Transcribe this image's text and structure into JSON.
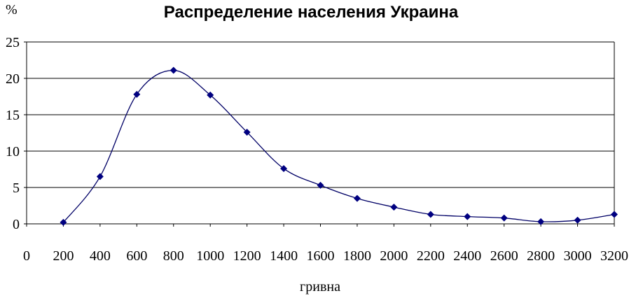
{
  "chart_data": {
    "type": "line",
    "title": "Распределение населения Украина",
    "xlabel": "гривна",
    "ylabel": "%",
    "x": [
      200,
      400,
      600,
      800,
      1000,
      1200,
      1400,
      1600,
      1800,
      2000,
      2200,
      2400,
      2600,
      2800,
      3000,
      3200
    ],
    "series": [
      {
        "values": [
          0.2,
          6.5,
          17.8,
          21.1,
          17.7,
          12.6,
          7.6,
          5.3,
          3.5,
          2.3,
          1.3,
          1.0,
          0.8,
          0.3,
          0.5,
          1.3
        ]
      }
    ],
    "xticks": [
      "0",
      "200",
      "400",
      "600",
      "800",
      "1000",
      "1200",
      "1400",
      "1600",
      "1800",
      "2000",
      "2200",
      "2400",
      "2600",
      "2800",
      "3000",
      "3200"
    ],
    "yticks": [
      "0",
      "5",
      "10",
      "15",
      "20",
      "25"
    ],
    "xlim": [
      0,
      3200
    ],
    "ylim": [
      0,
      25
    ],
    "grid": true,
    "colors": {
      "line": "#000066",
      "marker": "#000080",
      "grid": "#000000"
    }
  }
}
